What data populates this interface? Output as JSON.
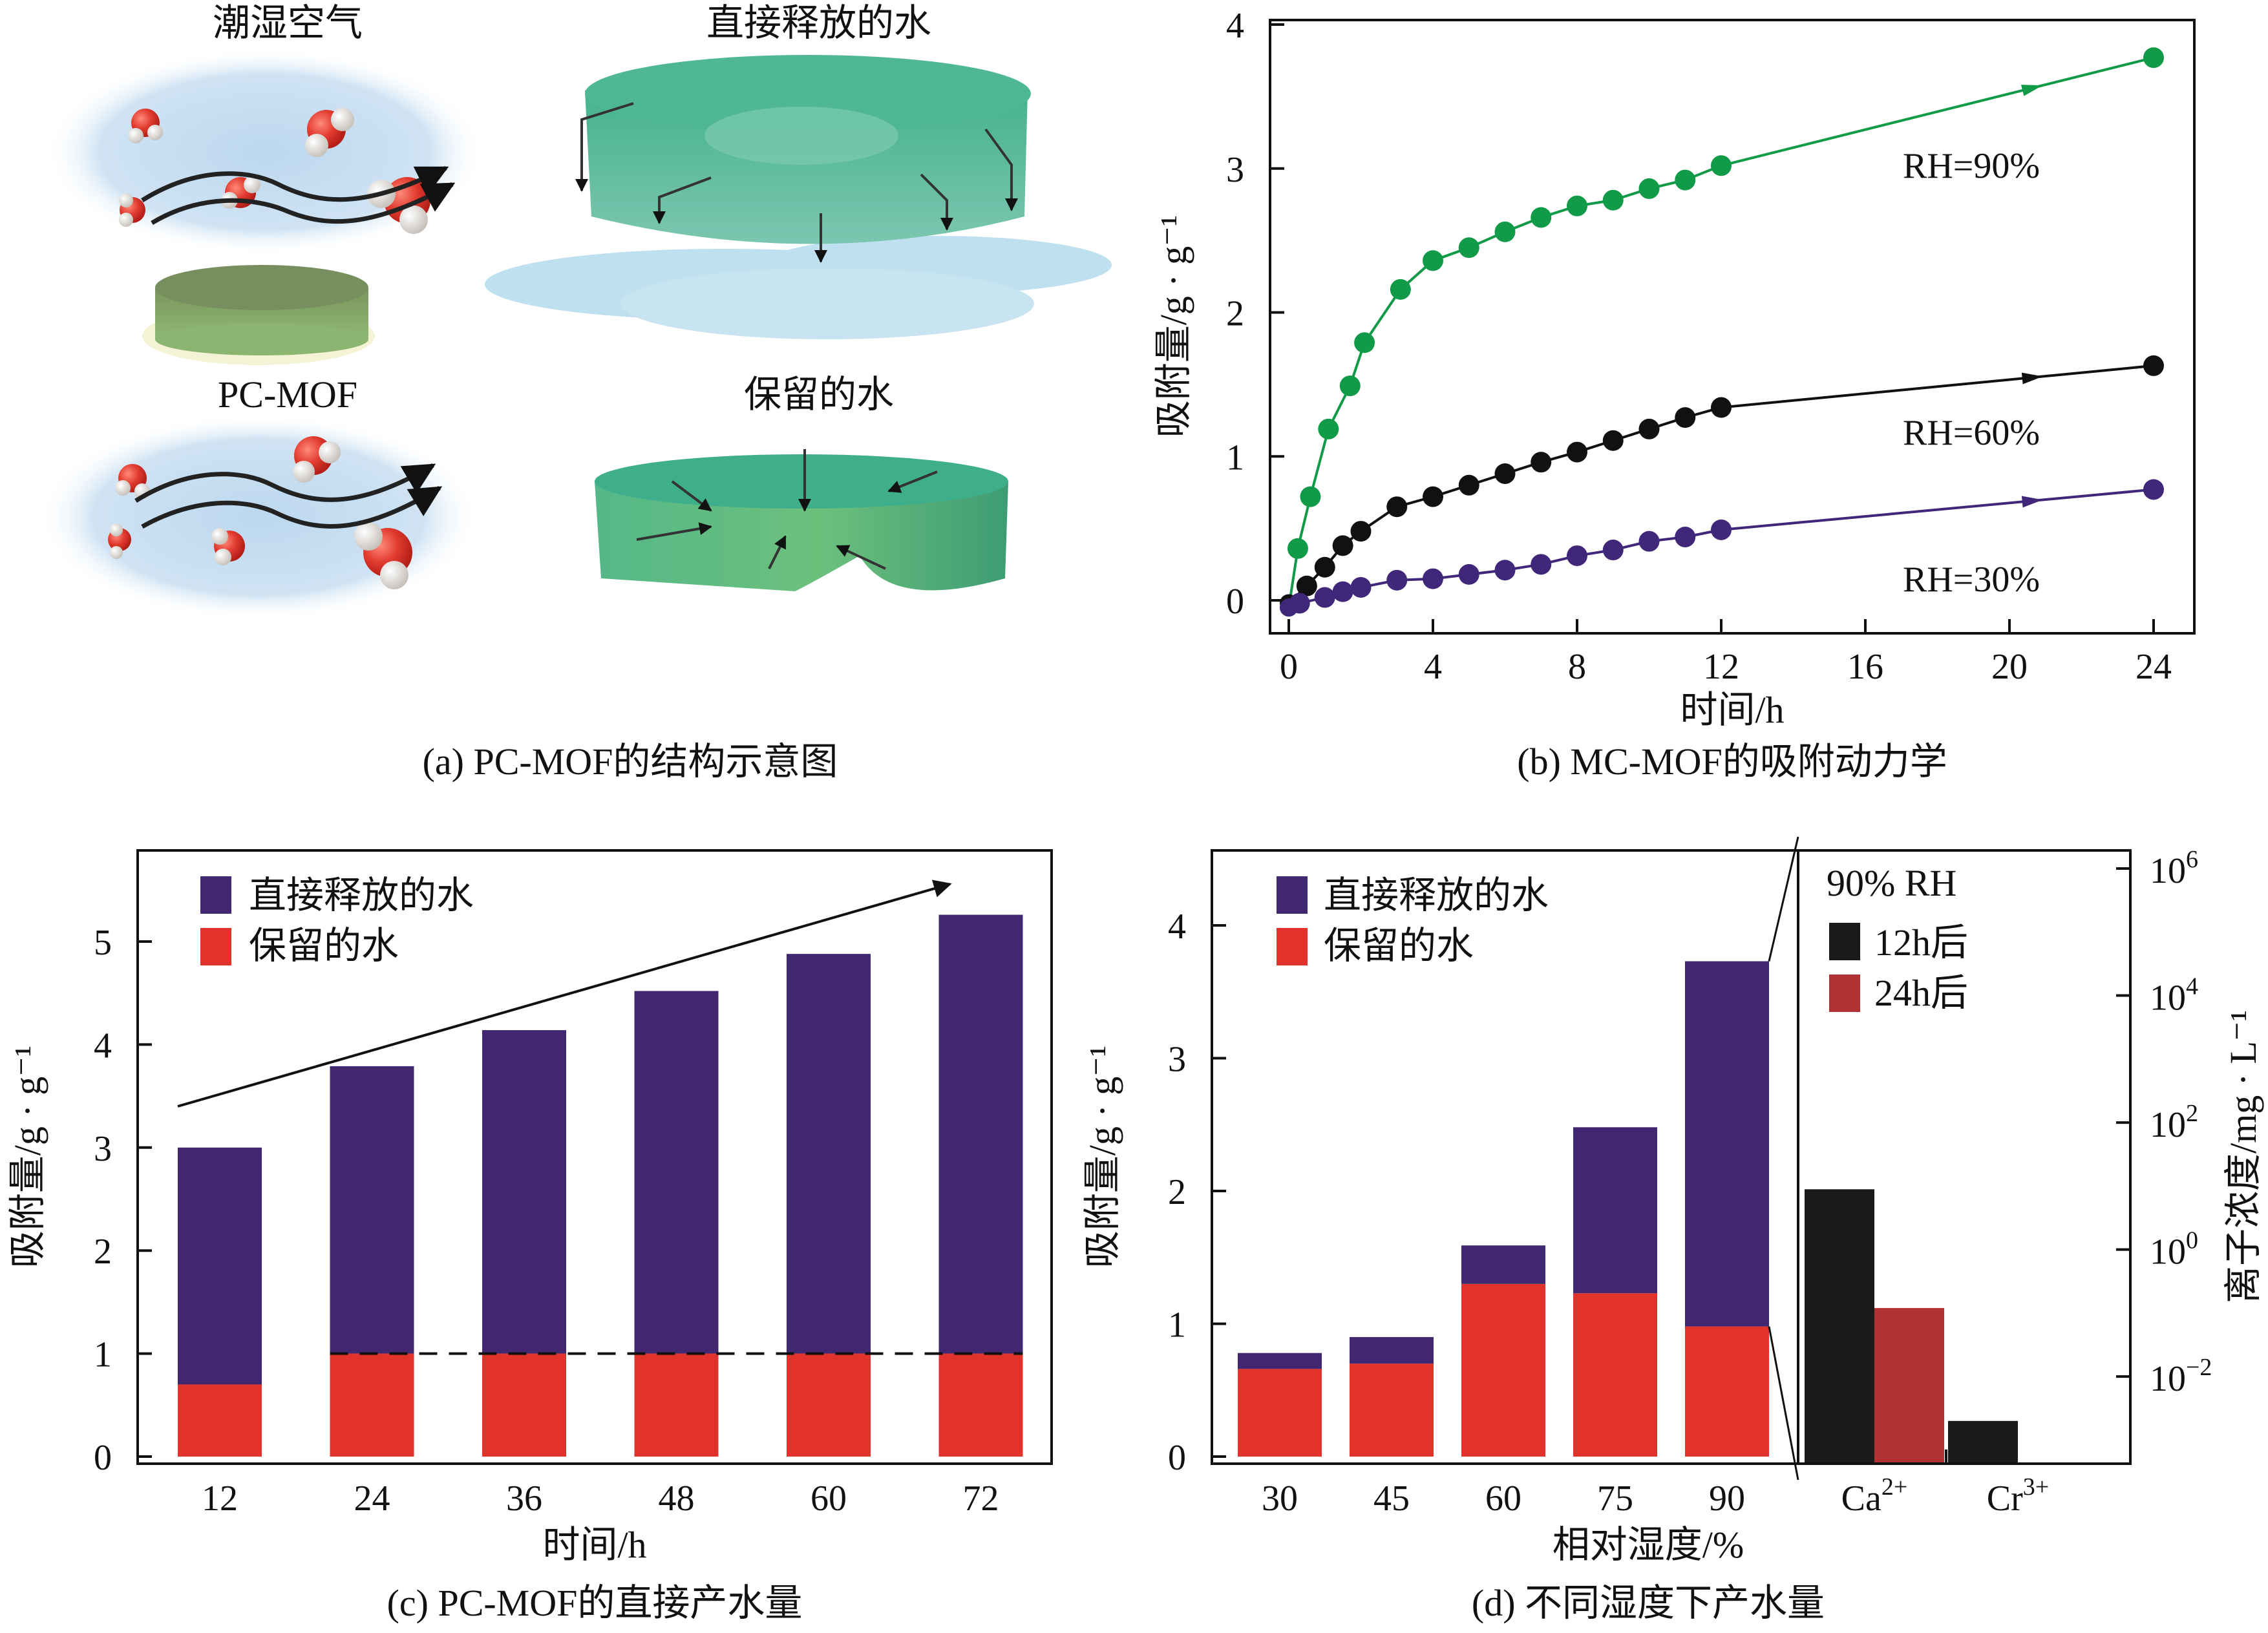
{
  "panel_a": {
    "labels": {
      "humid_air": "潮湿空气",
      "direct_release": "直接释放的水",
      "pc_mof": "PC-MOF",
      "retained": "保留的水"
    },
    "caption": "(a) PC-MOF的结构示意图",
    "colors": {
      "water_blue": "#c5def0",
      "mof_green": "#6f9a5c",
      "disk_teal": "#48b592",
      "oxygen_red": "#e23b2f"
    }
  },
  "chart_data": [
    {
      "id": "b",
      "type": "line",
      "title": "(b)  MC-MOF的吸附动力学",
      "xlabel": "时间/h",
      "ylabel": "吸附量/g · g⁻¹",
      "xlim": [
        0,
        24
      ],
      "ylim": [
        -0.1,
        4
      ],
      "xticks": [
        "0",
        "4",
        "8",
        "12",
        "16",
        "20",
        "24"
      ],
      "yticks": [
        "0",
        "1",
        "2",
        "3",
        "4"
      ],
      "grid": false,
      "series": [
        {
          "name": "RH=90%",
          "color": "#119a48",
          "x": [
            0,
            0.25,
            0.6,
            1.1,
            1.7,
            2.1,
            3.1,
            4,
            5,
            6,
            7,
            8,
            9,
            10,
            11,
            12,
            24
          ],
          "y": [
            -0.05,
            0.36,
            0.72,
            1.19,
            1.49,
            1.79,
            2.16,
            2.36,
            2.45,
            2.56,
            2.66,
            2.74,
            2.78,
            2.86,
            2.92,
            3.02,
            3.77
          ]
        },
        {
          "name": "RH=60%",
          "color": "#111111",
          "x": [
            0,
            0.5,
            1,
            1.5,
            2,
            3,
            4,
            5,
            6,
            7,
            8,
            9,
            10,
            11,
            12,
            24
          ],
          "y": [
            -0.02,
            0.1,
            0.23,
            0.38,
            0.48,
            0.65,
            0.72,
            0.8,
            0.88,
            0.96,
            1.03,
            1.11,
            1.19,
            1.27,
            1.34,
            1.63
          ]
        },
        {
          "name": "RH=30%",
          "color": "#40277a",
          "x": [
            0,
            0.3,
            1,
            1.5,
            2,
            3,
            4,
            5,
            6,
            7,
            8,
            9,
            10,
            11,
            12,
            24
          ],
          "y": [
            -0.05,
            -0.02,
            0.02,
            0.06,
            0.09,
            0.14,
            0.15,
            0.18,
            0.21,
            0.25,
            0.31,
            0.35,
            0.41,
            0.44,
            0.49,
            0.77
          ]
        }
      ],
      "annotations": [
        "RH=90%",
        "RH=60%",
        "RH=30%"
      ]
    },
    {
      "id": "c",
      "type": "bar",
      "stacked": true,
      "title": "(c) PC-MOF的直接产水量",
      "xlabel": "时间/h",
      "ylabel": "吸附量/g · g⁻¹",
      "categories": [
        "12",
        "24",
        "36",
        "48",
        "60",
        "72"
      ],
      "ylim": [
        0,
        5.85
      ],
      "yticks": [
        "0",
        "1",
        "2",
        "3",
        "4",
        "5"
      ],
      "series": [
        {
          "name": "保留的水",
          "color": "#e2322c",
          "values": [
            0.7,
            1.0,
            1.0,
            1.0,
            1.0,
            1.0
          ]
        },
        {
          "name": "直接释放的水",
          "color": "#41276f",
          "values": [
            2.3,
            2.79,
            3.14,
            3.52,
            3.88,
            4.26
          ]
        }
      ],
      "totals": [
        3.0,
        3.79,
        4.14,
        4.52,
        4.88,
        5.26
      ],
      "legend": "top-left",
      "reference_line": 1.0
    },
    {
      "id": "d",
      "type": "bar",
      "stacked": true,
      "title": "(d) 不同湿度下产水量",
      "xlabel": "相对湿度/%",
      "ylabel": "吸附量/g · g⁻¹",
      "categories": [
        "30",
        "45",
        "60",
        "75",
        "90"
      ],
      "ylim": [
        0,
        4.5
      ],
      "yticks": [
        "0",
        "1",
        "2",
        "3",
        "4"
      ],
      "series": [
        {
          "name": "保留的水",
          "color": "#e2322c",
          "values": [
            0.66,
            0.7,
            1.3,
            1.23,
            0.98
          ]
        },
        {
          "name": "直接释放的水",
          "color": "#41276f",
          "values": [
            0.12,
            0.2,
            0.29,
            1.25,
            2.75
          ]
        }
      ],
      "totals": [
        0.78,
        0.9,
        1.59,
        2.48,
        3.73
      ],
      "legend": "top-left",
      "inset": {
        "type": "bar",
        "title": "90% RH",
        "ylabel": "离子浓度/mg · L⁻¹",
        "yscale": "log",
        "ylim_exp": [
          -3.26,
          6
        ],
        "yticks": [
          {
            "base": "10",
            "exp": "6",
            "e": 6
          },
          {
            "base": "10",
            "exp": "4",
            "e": 4
          },
          {
            "base": "10",
            "exp": "2",
            "e": 2
          },
          {
            "base": "10",
            "exp": "0",
            "e": 0
          },
          {
            "base": "10",
            "exp": "−2",
            "e": -2
          }
        ],
        "categories": [
          {
            "base": "Ca",
            "sup": "2+"
          },
          {
            "base": "Cr",
            "sup": "3+"
          }
        ],
        "series": [
          {
            "name": "12h后",
            "color": "#1a1a1a",
            "values": [
              8.9,
              0.002
            ]
          },
          {
            "name": "24h后",
            "color": "#b23232",
            "values": [
              0.12,
              null
            ]
          }
        ]
      }
    }
  ]
}
